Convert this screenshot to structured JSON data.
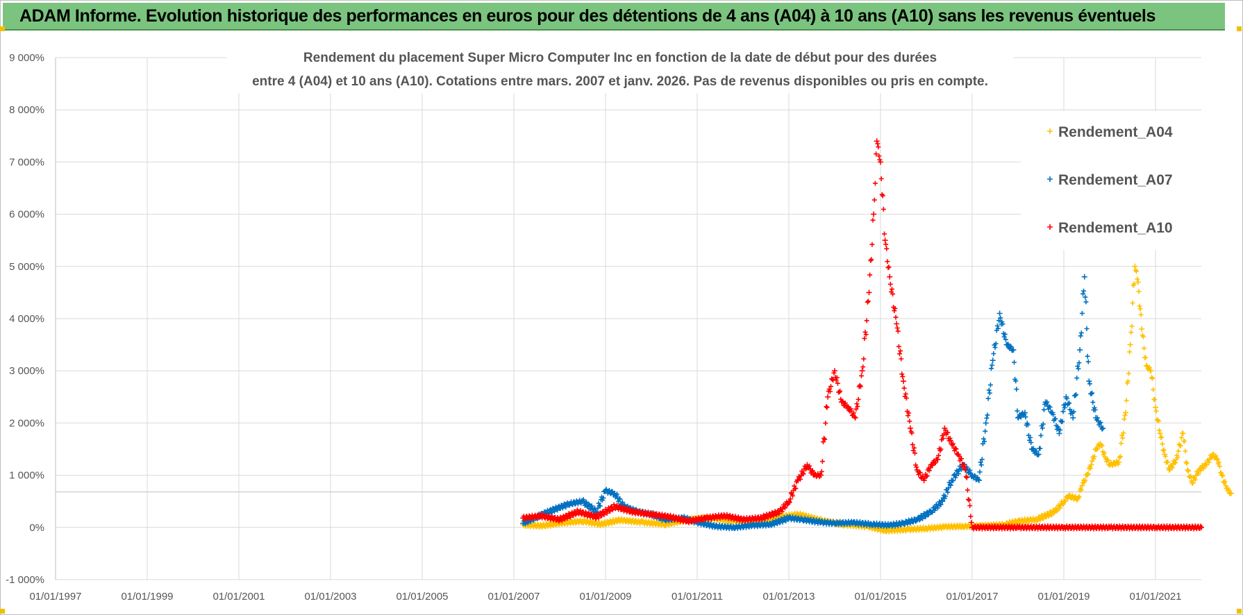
{
  "header": {
    "title": "ADAM Informe. Evolution historique des performances en euros pour des détentions de 4 ans (A04) à 10 ans (A10) sans les revenus éventuels"
  },
  "colors": {
    "banner_bg": "#7bc47f",
    "A04": "#ffc000",
    "A07": "#0070c0",
    "A10": "#ff0000",
    "grid": "#d9d9d9"
  },
  "chart_data": {
    "type": "scatter",
    "title_line1": "Rendement du placement Super Micro Computer Inc en fonction de la date de début pour des durées",
    "title_line2": "entre 4 (A04) et 10 ans (A10). Cotations entre mars. 2007 et janv. 2026. Pas de revenus disponibles ou pris en compte.",
    "x_range": [
      1997.0,
      2022.0
    ],
    "y_range": [
      -1000,
      9000
    ],
    "y_ticks": [
      -1000,
      0,
      1000,
      2000,
      3000,
      4000,
      5000,
      6000,
      7000,
      8000,
      9000
    ],
    "y_tick_labels": [
      "-1 000%",
      "0%",
      "1 000%",
      "2 000%",
      "3 000%",
      "4 000%",
      "5 000%",
      "6 000%",
      "7 000%",
      "8 000%",
      "9 000%"
    ],
    "x_ticks": [
      1997,
      1999,
      2001,
      2003,
      2005,
      2007,
      2009,
      2011,
      2013,
      2015,
      2017,
      2019,
      2021
    ],
    "x_tick_labels": [
      "01/01/1997",
      "01/01/1999",
      "01/01/2001",
      "01/01/2003",
      "01/01/2005",
      "01/01/2007",
      "01/01/2009",
      "01/01/2011",
      "01/01/2013",
      "01/01/2015",
      "01/01/2017",
      "01/01/2019",
      "01/01/2021"
    ],
    "reference_line": 680,
    "legend_position": "top-right",
    "series": [
      {
        "name": "Rendement_A04",
        "color": "#ffc000",
        "points": [
          [
            2007.2,
            50
          ],
          [
            2007.6,
            30
          ],
          [
            2008.0,
            80
          ],
          [
            2008.5,
            120
          ],
          [
            2008.9,
            60
          ],
          [
            2009.3,
            140
          ],
          [
            2009.8,
            100
          ],
          [
            2010.3,
            60
          ],
          [
            2010.8,
            150
          ],
          [
            2011.3,
            180
          ],
          [
            2011.8,
            120
          ],
          [
            2012.3,
            100
          ],
          [
            2012.8,
            200
          ],
          [
            2013.2,
            250
          ],
          [
            2013.7,
            130
          ],
          [
            2014.2,
            60
          ],
          [
            2014.7,
            20
          ],
          [
            2015.1,
            -60
          ],
          [
            2015.6,
            -40
          ],
          [
            2016.0,
            -20
          ],
          [
            2016.4,
            10
          ],
          [
            2016.8,
            20
          ],
          [
            2017.2,
            30
          ],
          [
            2017.7,
            50
          ],
          [
            2018.0,
            120
          ],
          [
            2018.4,
            150
          ],
          [
            2018.8,
            300
          ],
          [
            2019.0,
            500
          ],
          [
            2019.1,
            600
          ],
          [
            2019.3,
            550
          ],
          [
            2019.4,
            800
          ],
          [
            2019.5,
            1000
          ],
          [
            2019.6,
            1200
          ],
          [
            2019.7,
            1500
          ],
          [
            2019.8,
            1600
          ],
          [
            2019.9,
            1350
          ],
          [
            2020.0,
            1200
          ],
          [
            2020.2,
            1250
          ],
          [
            2020.35,
            2200
          ],
          [
            2020.45,
            3500
          ],
          [
            2020.55,
            5000
          ],
          [
            2020.62,
            4700
          ],
          [
            2020.7,
            3800
          ],
          [
            2020.8,
            3100
          ],
          [
            2020.9,
            3000
          ],
          [
            2021.0,
            2300
          ],
          [
            2021.1,
            1800
          ],
          [
            2021.2,
            1400
          ],
          [
            2021.3,
            1100
          ],
          [
            2021.45,
            1300
          ],
          [
            2021.6,
            1800
          ],
          [
            2021.7,
            1100
          ],
          [
            2021.8,
            850
          ],
          [
            2021.95,
            1100
          ],
          [
            2022.1,
            1200
          ],
          [
            2022.25,
            1400
          ],
          [
            2022.35,
            1300
          ],
          [
            2022.45,
            1000
          ],
          [
            2022.55,
            750
          ],
          [
            2022.65,
            650
          ]
        ]
      },
      {
        "name": "Rendement_A07",
        "color": "#0070c0",
        "points": [
          [
            2007.2,
            80
          ],
          [
            2007.5,
            200
          ],
          [
            2007.9,
            350
          ],
          [
            2008.2,
            450
          ],
          [
            2008.5,
            500
          ],
          [
            2008.8,
            300
          ],
          [
            2009.0,
            700
          ],
          [
            2009.2,
            650
          ],
          [
            2009.4,
            400
          ],
          [
            2009.7,
            300
          ],
          [
            2010.0,
            250
          ],
          [
            2010.3,
            150
          ],
          [
            2010.7,
            180
          ],
          [
            2011.0,
            100
          ],
          [
            2011.4,
            20
          ],
          [
            2011.8,
            0
          ],
          [
            2012.2,
            40
          ],
          [
            2012.6,
            60
          ],
          [
            2013.0,
            180
          ],
          [
            2013.3,
            150
          ],
          [
            2013.7,
            100
          ],
          [
            2014.0,
            80
          ],
          [
            2014.4,
            90
          ],
          [
            2014.8,
            60
          ],
          [
            2015.2,
            40
          ],
          [
            2015.5,
            80
          ],
          [
            2015.8,
            150
          ],
          [
            2016.1,
            300
          ],
          [
            2016.35,
            500
          ],
          [
            2016.55,
            900
          ],
          [
            2016.8,
            1200
          ],
          [
            2017.0,
            1000
          ],
          [
            2017.15,
            900
          ],
          [
            2017.3,
            2000
          ],
          [
            2017.45,
            3200
          ],
          [
            2017.6,
            4100
          ],
          [
            2017.75,
            3500
          ],
          [
            2017.9,
            3400
          ],
          [
            2018.0,
            2100
          ],
          [
            2018.15,
            2200
          ],
          [
            2018.3,
            1500
          ],
          [
            2018.45,
            1400
          ],
          [
            2018.6,
            2400
          ],
          [
            2018.75,
            2200
          ],
          [
            2018.9,
            1800
          ],
          [
            2019.05,
            2500
          ],
          [
            2019.2,
            2100
          ],
          [
            2019.35,
            3400
          ],
          [
            2019.45,
            4800
          ],
          [
            2019.55,
            2800
          ],
          [
            2019.7,
            2100
          ],
          [
            2019.85,
            1900
          ]
        ]
      },
      {
        "name": "Rendement_A10",
        "color": "#ff0000",
        "points": [
          [
            2007.2,
            180
          ],
          [
            2007.6,
            220
          ],
          [
            2008.0,
            150
          ],
          [
            2008.4,
            300
          ],
          [
            2008.8,
            200
          ],
          [
            2009.2,
            400
          ],
          [
            2009.6,
            300
          ],
          [
            2010.0,
            250
          ],
          [
            2010.4,
            200
          ],
          [
            2010.8,
            120
          ],
          [
            2011.2,
            180
          ],
          [
            2011.6,
            220
          ],
          [
            2012.0,
            150
          ],
          [
            2012.4,
            180
          ],
          [
            2012.8,
            300
          ],
          [
            2013.0,
            500
          ],
          [
            2013.2,
            900
          ],
          [
            2013.4,
            1200
          ],
          [
            2013.55,
            1000
          ],
          [
            2013.7,
            1000
          ],
          [
            2013.85,
            2500
          ],
          [
            2014.0,
            3000
          ],
          [
            2014.15,
            2400
          ],
          [
            2014.3,
            2300
          ],
          [
            2014.45,
            2100
          ],
          [
            2014.6,
            3000
          ],
          [
            2014.75,
            4500
          ],
          [
            2014.85,
            6000
          ],
          [
            2014.92,
            7400
          ],
          [
            2015.0,
            7000
          ],
          [
            2015.1,
            5500
          ],
          [
            2015.2,
            4800
          ],
          [
            2015.35,
            3900
          ],
          [
            2015.5,
            2800
          ],
          [
            2015.65,
            1900
          ],
          [
            2015.8,
            1100
          ],
          [
            2015.95,
            900
          ],
          [
            2016.1,
            1200
          ],
          [
            2016.25,
            1300
          ],
          [
            2016.4,
            1900
          ],
          [
            2016.55,
            1600
          ],
          [
            2016.7,
            1400
          ],
          [
            2016.85,
            1100
          ],
          [
            2017.0,
            0
          ],
          [
            2018.0,
            0
          ],
          [
            2019.0,
            0
          ],
          [
            2020.0,
            0
          ],
          [
            2021.0,
            0
          ],
          [
            2022.0,
            0
          ]
        ]
      }
    ]
  }
}
